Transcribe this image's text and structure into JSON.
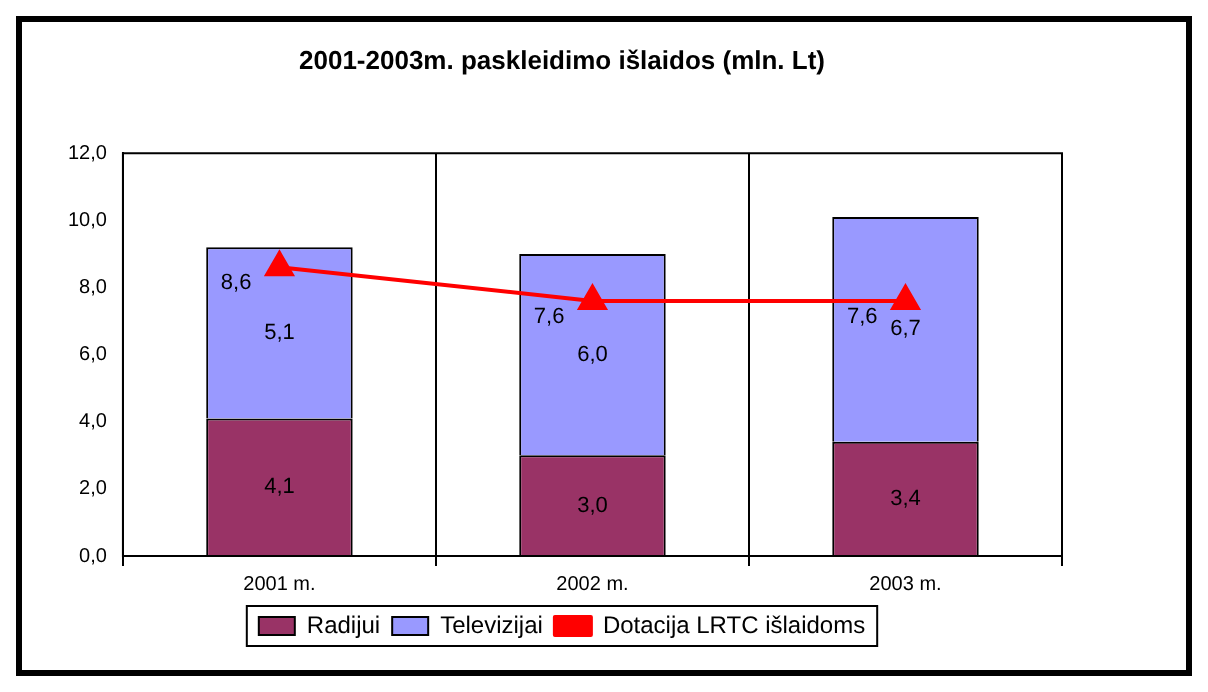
{
  "chart_data": {
    "type": "bar",
    "title": "2001-2003m. paskleidimo išlaidos (mln. Lt)",
    "categories": [
      "2001 m.",
      "2002 m.",
      "2003 m."
    ],
    "stacked": true,
    "series": [
      {
        "name": "Radijui",
        "color": "#993366",
        "values": [
          4.1,
          3.0,
          3.4
        ],
        "value_labels": [
          "4,1",
          "3,0",
          "3,4"
        ]
      },
      {
        "name": "Televizijai",
        "color": "#9999ff",
        "values": [
          5.1,
          6.0,
          6.7
        ],
        "value_labels": [
          "5,1",
          "6,0",
          "6,7"
        ]
      },
      {
        "name": "Dotacija LRTC išlaidoms",
        "type": "line",
        "color": "#ff0000",
        "marker": "triangle",
        "values": [
          8.6,
          7.6,
          7.6
        ],
        "value_labels": [
          "8,6",
          "7,6",
          "7,6"
        ]
      }
    ],
    "ylim": [
      0,
      12
    ],
    "yticks": [
      {
        "value": 0,
        "label": "0,0"
      },
      {
        "value": 2,
        "label": "2,0"
      },
      {
        "value": 4,
        "label": "4,0"
      },
      {
        "value": 6,
        "label": "6,0"
      },
      {
        "value": 8,
        "label": "8,0"
      },
      {
        "value": 10,
        "label": "10,0"
      },
      {
        "value": 12,
        "label": "12,0"
      }
    ],
    "grid": "x",
    "legend": "bottom"
  }
}
